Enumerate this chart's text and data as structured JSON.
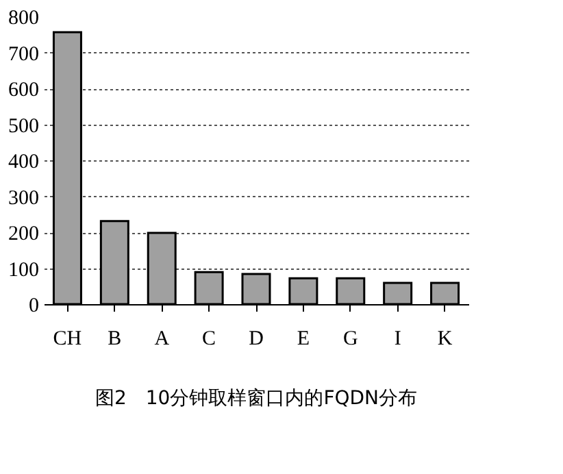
{
  "chart_data": {
    "type": "bar",
    "title": "图2　10分钟取样窗口内的FQDN分布",
    "categories": [
      "CH",
      "B",
      "A",
      "C",
      "D",
      "E",
      "G",
      "I",
      "K"
    ],
    "values": [
      756,
      231,
      198,
      89,
      84,
      72,
      72,
      59,
      59
    ],
    "color": "#a0a0a0",
    "ylim": [
      0,
      800
    ],
    "yticks": [
      0,
      100,
      200,
      300,
      400,
      500,
      600,
      700,
      800
    ],
    "grid": "y"
  }
}
